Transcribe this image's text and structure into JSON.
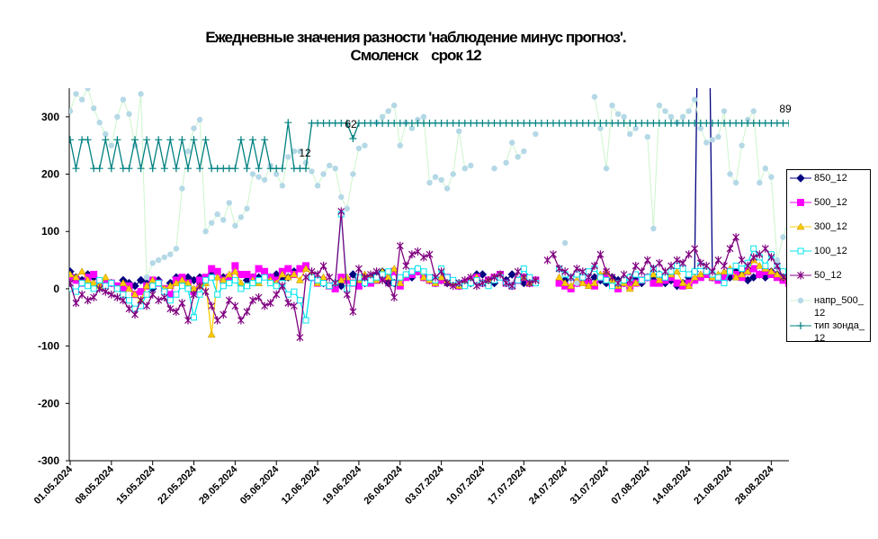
{
  "chart_data": {
    "type": "line",
    "title": "Ежедневные значения разности 'наблюдение минус прогноз'.",
    "subtitle": "Смоленск    срок 12",
    "categories": [
      "01.05.2024",
      null,
      null,
      null,
      null,
      null,
      null,
      "08.05.2024",
      null,
      null,
      null,
      null,
      null,
      null,
      "15.05.2024",
      null,
      null,
      null,
      null,
      null,
      null,
      "22.05.2024",
      null,
      null,
      null,
      null,
      null,
      null,
      "29.05.2024",
      null,
      null,
      null,
      null,
      null,
      null,
      "05.06.2024",
      null,
      null,
      null,
      null,
      null,
      null,
      "12.06.2024",
      null,
      null,
      null,
      null,
      null,
      null,
      "19.06.2024",
      null,
      null,
      null,
      null,
      null,
      null,
      "26.06.2024",
      null,
      null,
      null,
      null,
      null,
      null,
      "03.07.2024",
      null,
      null,
      null,
      null,
      null,
      null,
      "10.07.2024",
      null,
      null,
      null,
      null,
      null,
      null,
      "17.07.2024",
      null,
      null,
      null,
      null,
      null,
      null,
      "24.07.2024",
      null,
      null,
      null,
      null,
      null,
      null,
      "31.07.2024",
      null,
      null,
      null,
      null,
      null,
      null,
      "07.08.2024",
      null,
      null,
      null,
      null,
      null,
      null,
      "14.08.2024",
      null,
      null,
      null,
      null,
      null,
      null,
      "21.08.2024",
      null,
      null,
      null,
      null,
      null,
      null,
      "28.08.2024",
      null,
      null,
      null
    ],
    "ylim": [
      -300,
      350
    ],
    "yticks": [
      -300,
      -200,
      -100,
      0,
      100,
      200,
      300
    ],
    "annotations": [
      "12",
      "62",
      "89"
    ],
    "series": [
      {
        "name": "850_12",
        "color": "#000080",
        "marker": "diamond",
        "values": [
          30,
          20,
          15,
          25,
          20,
          null,
          10,
          10,
          null,
          15,
          10,
          5,
          15,
          10,
          0,
          15,
          null,
          10,
          20,
          15,
          20,
          15,
          20,
          null,
          25,
          null,
          20,
          15,
          null,
          null,
          15,
          20,
          20,
          null,
          20,
          25,
          15,
          20,
          30,
          null,
          null,
          20,
          15,
          10,
          null,
          10,
          5,
          15,
          25,
          10,
          10,
          20,
          25,
          30,
          10,
          10,
          null,
          null,
          20,
          30,
          20,
          15,
          10,
          15,
          10,
          null,
          5,
          null,
          10,
          25,
          25,
          null,
          10,
          null,
          15,
          25,
          null,
          10,
          10,
          null,
          null,
          null,
          null,
          null,
          15,
          null,
          10,
          15,
          10,
          20,
          15,
          10,
          20,
          15,
          10,
          20,
          15,
          10,
          20,
          15,
          25,
          10,
          15,
          5,
          10,
          20,
          30,
          900,
          900,
          20,
          20,
          15,
          20,
          30,
          25,
          15,
          20,
          25,
          20,
          30,
          25,
          20,
          15
        ]
      },
      {
        "name": "500_12",
        "color": "#ff00ff",
        "marker": "square",
        "values": [
          20,
          15,
          10,
          20,
          25,
          10,
          10,
          10,
          5,
          0,
          5,
          -10,
          -5,
          5,
          15,
          10,
          0,
          -10,
          15,
          20,
          10,
          -5,
          15,
          20,
          35,
          30,
          15,
          20,
          40,
          25,
          25,
          20,
          35,
          30,
          20,
          15,
          30,
          35,
          25,
          35,
          40,
          20,
          10,
          15,
          5,
          0,
          20,
          15,
          10,
          5,
          20,
          10,
          15,
          20,
          25,
          30,
          5,
          20,
          25,
          30,
          20,
          15,
          10,
          15,
          20,
          10,
          5,
          10,
          15,
          20,
          10,
          15,
          20,
          25,
          10,
          5,
          15,
          20,
          10,
          15,
          null,
          null,
          null,
          10,
          5,
          0,
          10,
          15,
          10,
          5,
          20,
          25,
          10,
          0,
          10,
          5,
          10,
          15,
          20,
          10,
          10,
          15,
          20,
          10,
          5,
          10,
          15,
          20,
          25,
          20,
          15,
          20,
          30,
          25,
          20,
          30,
          35,
          25,
          30,
          25,
          20,
          15,
          10
        ]
      },
      {
        "name": "300_12",
        "color": "#ffcc00",
        "marker": "triangle",
        "values": [
          25,
          20,
          30,
          15,
          10,
          5,
          20,
          10,
          0,
          10,
          0,
          -10,
          -20,
          5,
          15,
          10,
          0,
          5,
          10,
          15,
          10,
          0,
          5,
          10,
          -80,
          20,
          15,
          25,
          30,
          10,
          5,
          15,
          10,
          20,
          15,
          10,
          25,
          20,
          25,
          15,
          35,
          25,
          10,
          20,
          5,
          10,
          15,
          20,
          10,
          15,
          25,
          20,
          15,
          30,
          20,
          35,
          10,
          25,
          30,
          35,
          20,
          15,
          10,
          20,
          15,
          10,
          5,
          10,
          15,
          20,
          10,
          15,
          20,
          25,
          10,
          5,
          15,
          20,
          10,
          15,
          null,
          null,
          null,
          20,
          10,
          5,
          15,
          10,
          5,
          10,
          25,
          30,
          15,
          5,
          10,
          0,
          10,
          15,
          20,
          25,
          15,
          20,
          25,
          30,
          10,
          5,
          20,
          25,
          30,
          20,
          25,
          30,
          35,
          20,
          25,
          30,
          50,
          40,
          35,
          30,
          25,
          20,
          15
        ]
      },
      {
        "name": "100_12",
        "color": "#00e5ee",
        "marker": "hollow-square",
        "values": [
          0,
          -5,
          10,
          5,
          0,
          15,
          5,
          10,
          0,
          -10,
          -20,
          -35,
          -30,
          -10,
          5,
          10,
          -5,
          -20,
          -10,
          5,
          0,
          -50,
          -10,
          15,
          20,
          -10,
          5,
          10,
          15,
          0,
          5,
          10,
          15,
          20,
          10,
          5,
          10,
          -10,
          -5,
          -20,
          -55,
          20,
          15,
          10,
          5,
          10,
          130,
          0,
          10,
          20,
          10,
          15,
          20,
          25,
          30,
          10,
          20,
          25,
          30,
          35,
          30,
          20,
          15,
          35,
          20,
          15,
          10,
          5,
          10,
          15,
          10,
          5,
          15,
          20,
          10,
          5,
          15,
          35,
          20,
          10,
          null,
          null,
          null,
          35,
          25,
          20,
          25,
          20,
          30,
          35,
          20,
          15,
          5,
          10,
          15,
          20,
          25,
          15,
          20,
          35,
          25,
          20,
          30,
          40,
          35,
          25,
          30,
          40,
          30,
          25,
          20,
          10,
          30,
          40,
          35,
          45,
          70,
          55,
          40,
          60,
          40,
          30,
          20
        ]
      },
      {
        "name": "50_12",
        "color": "#800080",
        "marker": "star",
        "values": [
          10,
          -25,
          -10,
          -20,
          -15,
          0,
          -5,
          -10,
          -15,
          -20,
          -35,
          -45,
          -20,
          -30,
          -10,
          -20,
          -15,
          -35,
          -40,
          -25,
          -55,
          -10,
          5,
          -5,
          -30,
          -55,
          -45,
          -20,
          -30,
          -55,
          -40,
          -20,
          -15,
          -30,
          -25,
          -10,
          5,
          -25,
          -30,
          -85,
          20,
          30,
          25,
          40,
          20,
          10,
          135,
          -10,
          -40,
          35,
          20,
          25,
          30,
          15,
          10,
          -15,
          75,
          40,
          60,
          65,
          55,
          60,
          20,
          30,
          10,
          5,
          10,
          15,
          20,
          5,
          10,
          15,
          20,
          25,
          10,
          5,
          30,
          20,
          10,
          15,
          null,
          50,
          60,
          35,
          30,
          20,
          35,
          30,
          20,
          40,
          60,
          30,
          20,
          10,
          25,
          15,
          40,
          30,
          50,
          35,
          45,
          30,
          40,
          50,
          45,
          60,
          70,
          45,
          40,
          30,
          50,
          40,
          70,
          90,
          50,
          40,
          55,
          60,
          70,
          55,
          40,
          20,
          15
        ]
      },
      {
        "name": "напр_500_12",
        "color": "#b4d8e6",
        "line_color": "#ccf5cc",
        "marker": "dot",
        "values": [
          310,
          340,
          330,
          350,
          315,
          290,
          270,
          250,
          300,
          330,
          305,
          250,
          340,
          20,
          45,
          50,
          55,
          60,
          70,
          175,
          240,
          280,
          295,
          100,
          115,
          130,
          120,
          150,
          110,
          125,
          140,
          200,
          195,
          190,
          215,
          200,
          180,
          230,
          240,
          240,
          220,
          205,
          180,
          200,
          215,
          210,
          160,
          140,
          200,
          245,
          250,
          null,
          290,
          300,
          310,
          320,
          250,
          290,
          280,
          295,
          300,
          185,
          195,
          190,
          175,
          200,
          275,
          210,
          215,
          null,
          null,
          null,
          210,
          null,
          220,
          255,
          230,
          240,
          null,
          270,
          null,
          null,
          null,
          null,
          80,
          null,
          10,
          null,
          null,
          335,
          280,
          210,
          320,
          305,
          300,
          270,
          280,
          null,
          265,
          105,
          320,
          310,
          300,
          290,
          300,
          310,
          330,
          280,
          255,
          260,
          265,
          310,
          200,
          185,
          250,
          295,
          310,
          185,
          210,
          195,
          50,
          90,
          125
        ]
      },
      {
        "name": "тип зонда_12",
        "color": "#008080",
        "marker": "plus",
        "values": [
          260,
          210,
          260,
          260,
          210,
          210,
          260,
          210,
          260,
          210,
          210,
          260,
          210,
          260,
          210,
          260,
          210,
          260,
          210,
          260,
          210,
          260,
          210,
          260,
          210,
          210,
          210,
          210,
          210,
          260,
          210,
          260,
          210,
          260,
          210,
          210,
          210,
          290,
          210,
          210,
          210,
          289,
          289,
          289,
          289,
          289,
          289,
          289,
          262,
          289,
          289,
          289,
          289,
          289,
          289,
          289,
          289,
          289,
          289,
          289,
          289,
          289,
          289,
          289,
          289,
          289,
          289,
          289,
          289,
          289,
          289,
          289,
          289,
          289,
          289,
          289,
          289,
          289,
          289,
          289,
          289,
          289,
          289,
          289,
          289,
          289,
          289,
          289,
          289,
          289,
          289,
          289,
          289,
          289,
          289,
          289,
          289,
          289,
          289,
          289,
          289,
          289,
          289,
          289,
          289,
          289,
          289,
          289,
          289,
          289,
          289,
          289,
          289,
          289,
          289,
          289,
          289,
          289,
          289,
          289,
          289,
          289,
          289
        ]
      }
    ]
  }
}
